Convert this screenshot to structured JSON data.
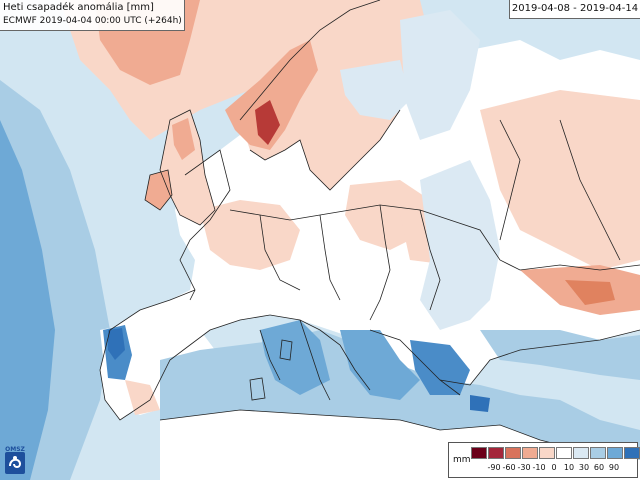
{
  "header": {
    "title": "Heti csapadék anomália [mm]",
    "subtitle": "ECMWF 2019-04-04 00:00 UTC (+264h)",
    "period": "2019-04-08 - 2019-04-14"
  },
  "logo": {
    "text": "OMSZ",
    "icon": "omsz-logo-icon"
  },
  "legend": {
    "unit": "mm",
    "colors": [
      "#6b0019",
      "#a4263a",
      "#d8735c",
      "#f0ab92",
      "#f9d7c8",
      "#ffffff",
      "#dbe9f3",
      "#a9cde5",
      "#6ea9d6",
      "#2f71b8",
      "#0d3f80"
    ],
    "labels": [
      "-90",
      "-60",
      "-30",
      "-10",
      "0",
      "10",
      "30",
      "60",
      "90"
    ]
  },
  "palette": {
    "sea_light": "#d2e6f2",
    "sea_mid": "#a9cde5",
    "sea_deep": "#6ea9d6",
    "dry_light": "#f9d7c8",
    "dry_mid": "#f0ab92",
    "dry_strong": "#e0825f",
    "dry_extreme": "#b73a37",
    "wet_strong": "#4a8cc8",
    "wet_extreme": "#2f71b8",
    "border": "#222222"
  }
}
